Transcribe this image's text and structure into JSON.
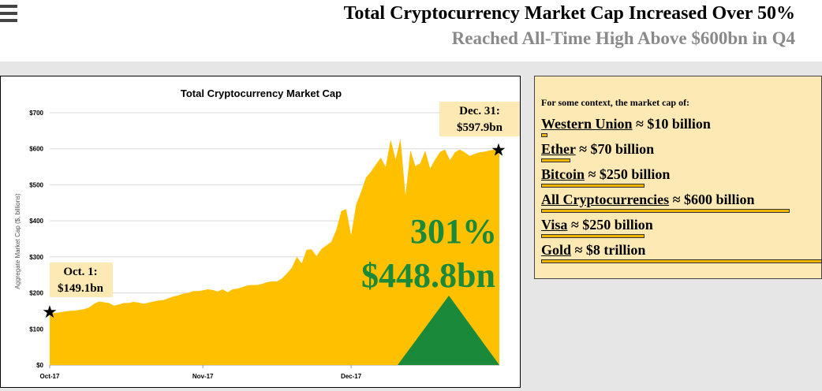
{
  "header": {
    "title": "Total Cryptocurrency Market Cap Increased Over 50%",
    "subtitle": "Reached All-Time High Above $600bn in Q4"
  },
  "chart_data": {
    "type": "area",
    "title": "Total Cryptocurrency Market Cap",
    "ylabel": "Aggregate Market Cap ($, billions)",
    "xlabel": "",
    "ylim": [
      0,
      700
    ],
    "yticks": [
      "$0",
      "$100",
      "$200",
      "$300",
      "$400",
      "$500",
      "$600",
      "$700"
    ],
    "xticks": [
      "Oct-17",
      "Nov-17",
      "Dec-17"
    ],
    "x_day_range": [
      1,
      92
    ],
    "x_tick_days": [
      1,
      32,
      62
    ],
    "grid": true,
    "color": "#ffc000",
    "series": [
      {
        "x": [
          1,
          2,
          3,
          4,
          5,
          6,
          7,
          8,
          9,
          10,
          11,
          12,
          13,
          14,
          15,
          16,
          17,
          18,
          19,
          20,
          21,
          22,
          23,
          24,
          25,
          26,
          27,
          28,
          29,
          30,
          31,
          32,
          33,
          34,
          35,
          36,
          37,
          38,
          39,
          40,
          41,
          42,
          43,
          44,
          45,
          46,
          47,
          48,
          49,
          50,
          51,
          52,
          53,
          54,
          55,
          56,
          57,
          58,
          59,
          60,
          61,
          62,
          63,
          64,
          65,
          66,
          67,
          68,
          69,
          70,
          71,
          72,
          73,
          74,
          75,
          76,
          77,
          78,
          79,
          80,
          81,
          82,
          83,
          84,
          85,
          86,
          87,
          88,
          89,
          90,
          91,
          92
        ],
        "values": [
          149,
          144,
          146,
          148,
          150,
          151,
          153,
          155,
          160,
          170,
          176,
          174,
          172,
          165,
          168,
          172,
          172,
          175,
          173,
          170,
          173,
          176,
          179,
          180,
          185,
          190,
          193,
          198,
          200,
          205,
          205,
          207,
          210,
          208,
          204,
          210,
          202,
          210,
          212,
          216,
          221,
          222,
          222,
          225,
          230,
          232,
          232,
          240,
          254,
          270,
          300,
          282,
          320,
          321,
          302,
          322,
          332,
          342,
          375,
          427,
          433,
          360,
          445,
          480,
          520,
          536,
          556,
          575,
          550,
          625,
          570,
          628,
          470,
          596,
          552,
          560,
          595,
          545,
          570,
          591,
          598,
          568,
          590,
          597.9,
          590,
          580,
          586,
          590,
          592,
          595,
          598,
          597.9
        ]
      }
    ],
    "annotations": {
      "start_label": "Oct. 1:",
      "start_value": "$149.1bn",
      "end_label": "Dec. 31:",
      "end_value": "$597.9bn",
      "pct_change": "301%",
      "abs_change": "$448.8bn"
    }
  },
  "context": {
    "intro": "For some context, the market cap of:",
    "items": [
      {
        "label": "Western Union",
        "value": "≈ $10 billion",
        "billions": 10
      },
      {
        "label": "Ether",
        "value": "≈ $70 billion",
        "billions": 70
      },
      {
        "label": "Bitcoin",
        "value": "≈ $250 billion",
        "billions": 250
      },
      {
        "label": "All Cryptocurrencies",
        "value": "≈ $600 billion",
        "billions": 600
      },
      {
        "label": "Visa",
        "value": "≈ $250 billion",
        "billions": 250
      },
      {
        "label": "Gold",
        "value": "≈ $8 trillion",
        "billions": 8000
      }
    ]
  },
  "colors": {
    "area": "#ffc000",
    "arrow": "#1a8a3a",
    "change_text": "#1a8a3a",
    "label_box": "#fde9b4",
    "context_bg": "#fde9b4"
  }
}
